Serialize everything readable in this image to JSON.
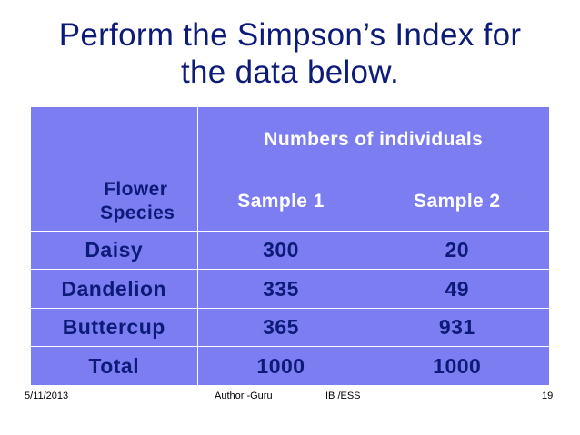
{
  "slide": {
    "title_line1": "Perform the Simpson’s Index for",
    "title_line2": "the data below."
  },
  "table": {
    "group_header": "Numbers of individuals",
    "species_header_line1": "Flower",
    "species_header_line2": "Species",
    "sample_headers": [
      "Sample 1",
      "Sample 2"
    ],
    "rows": [
      {
        "name": "Daisy",
        "sample1": "300",
        "sample2": "20"
      },
      {
        "name": "Dandelion",
        "sample1": "335",
        "sample2": "49"
      },
      {
        "name": "Buttercup",
        "sample1": "365",
        "sample2": "931"
      },
      {
        "name": "Total",
        "sample1": "1000",
        "sample2": "1000"
      }
    ]
  },
  "footer": {
    "date": "5/11/2013",
    "author": "Author -Guru",
    "course": "IB /ESS",
    "page": "19"
  },
  "colors": {
    "table_fill": "#7d7df2",
    "title_text": "#0c1a78",
    "header_text": "#ffffff",
    "cell_text": "#0c1a78"
  }
}
